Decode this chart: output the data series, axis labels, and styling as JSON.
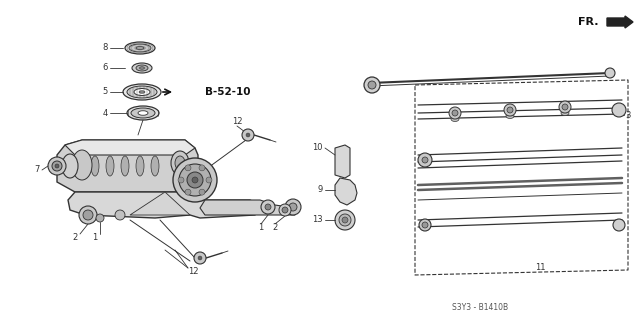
{
  "bg_color": "#ffffff",
  "diagram_code": "S3Y3 - B1410B",
  "fr_label": "FR.",
  "b_label": "B-52-10",
  "line_color": "#333333",
  "text_color": "#333333",
  "bold_text_color": "#111111",
  "gray_light": "#d0d0d0",
  "gray_mid": "#a0a0a0",
  "gray_dark": "#606060"
}
